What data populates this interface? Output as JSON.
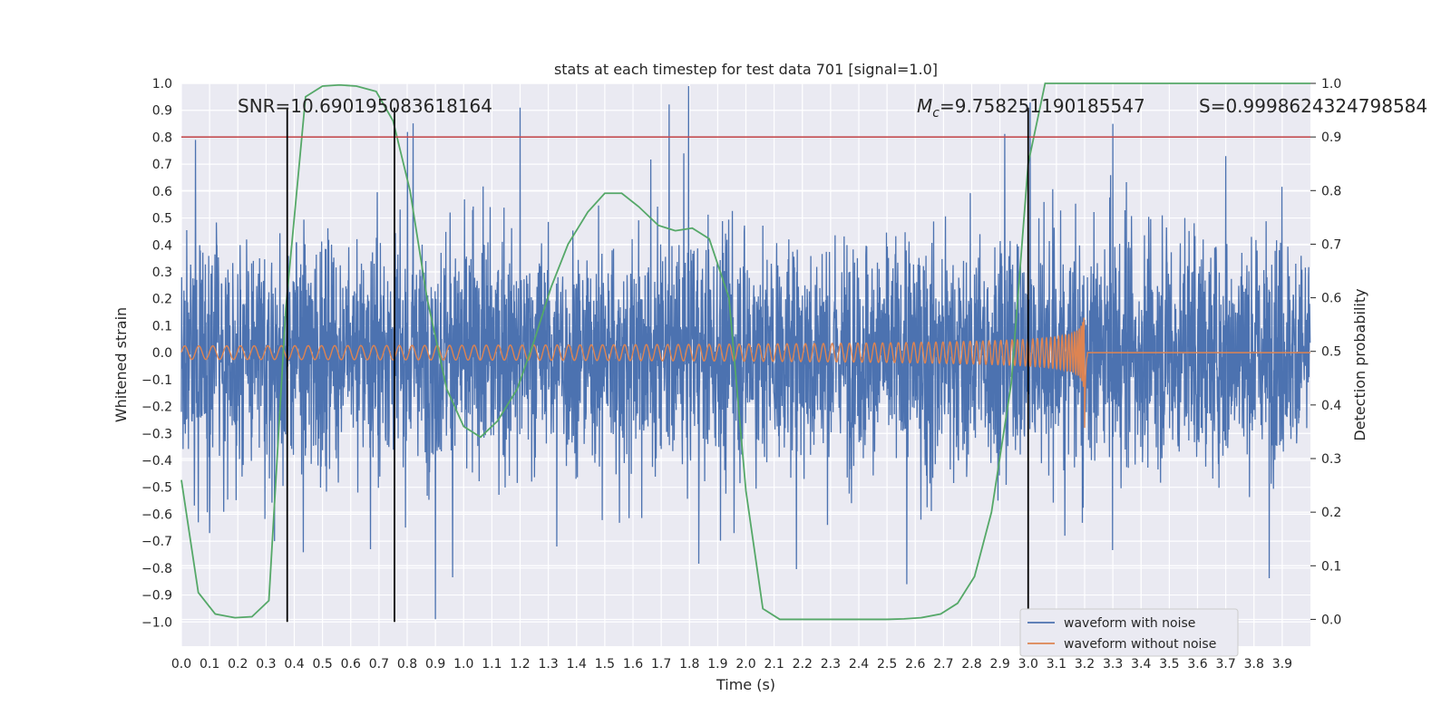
{
  "chart_data": {
    "type": "line",
    "title": "stats at each timestep for test data 701 [signal=1.0]",
    "xlabel": "Time (s)",
    "ylabel_left": "Whitened strain",
    "ylabel_right": "Detection probability",
    "xlim": [
      0.0,
      4.0
    ],
    "ylim_left": [
      -1.09,
      1.0
    ],
    "ylim_right": [
      -0.05,
      1.0
    ],
    "x_ticks": [
      "0.0",
      "0.1",
      "0.2",
      "0.3",
      "0.4",
      "0.5",
      "0.6",
      "0.7",
      "0.8",
      "0.9",
      "1.0",
      "1.1",
      "1.2",
      "1.3",
      "1.4",
      "1.5",
      "1.6",
      "1.7",
      "1.8",
      "1.9",
      "2.0",
      "2.1",
      "2.2",
      "2.3",
      "2.4",
      "2.5",
      "2.6",
      "2.7",
      "2.8",
      "2.9",
      "3.0",
      "3.1",
      "3.2",
      "3.3",
      "3.4",
      "3.5",
      "3.6",
      "3.7",
      "3.8",
      "3.9"
    ],
    "y_ticks_left": [
      "1.0",
      "0.9",
      "0.8",
      "0.7",
      "0.6",
      "0.5",
      "0.4",
      "0.3",
      "0.2",
      "0.1",
      "0.0",
      "−0.1",
      "−0.2",
      "−0.3",
      "−0.4",
      "−0.5",
      "−0.6",
      "−0.7",
      "−0.8",
      "−0.9",
      "−1.0"
    ],
    "y_ticks_right": [
      "1.0",
      "0.9",
      "0.8",
      "0.7",
      "0.6",
      "0.5",
      "0.4",
      "0.3",
      "0.2",
      "0.1",
      "0.0"
    ],
    "grid": true,
    "annotations": {
      "snr": "SNR=10.690195083618164",
      "mc_symbol": "M",
      "mc_sub": "c",
      "mc_value": "=9.758251190185547",
      "s": "S=0.9998624324798584"
    },
    "threshold_right": 0.9,
    "vertical_lines_x": [
      0.375,
      0.755,
      3.0
    ],
    "vertical_lines_range_left": [
      -1.0,
      0.91
    ],
    "series": [
      {
        "name": "waveform with noise",
        "color": "#4c72b0",
        "axis": "left",
        "kind": "noise",
        "typical_amplitude": 0.25,
        "spikes": [
          {
            "x": 0.05,
            "y": 0.79
          },
          {
            "x": 0.06,
            "y": -0.63
          },
          {
            "x": 0.1,
            "y": -0.67
          },
          {
            "x": 0.33,
            "y": -0.7
          },
          {
            "x": 0.67,
            "y": -0.73
          },
          {
            "x": 0.9,
            "y": -0.99
          },
          {
            "x": 1.2,
            "y": 0.91
          },
          {
            "x": 1.33,
            "y": -0.72
          },
          {
            "x": 1.78,
            "y": 0.74
          },
          {
            "x": 2.57,
            "y": -0.86
          },
          {
            "x": 3.0,
            "y": 0.73
          },
          {
            "x": 3.3,
            "y": 0.85
          },
          {
            "x": 3.7,
            "y": 0.73
          },
          {
            "x": 3.13,
            "y": -0.68
          }
        ]
      },
      {
        "name": "waveform without noise",
        "color": "#dd8452",
        "axis": "left",
        "kind": "chirp",
        "start_amplitude": 0.025,
        "peak_amplitude": 0.28,
        "start_frequency_hz": 20,
        "merger_time": 3.2
      },
      {
        "name": "detection probability",
        "color": "#55a868",
        "axis": "right",
        "x": [
          0.0,
          0.06,
          0.12,
          0.19,
          0.25,
          0.31,
          0.37,
          0.44,
          0.5,
          0.56,
          0.62,
          0.69,
          0.75,
          0.81,
          0.87,
          0.94,
          1.0,
          1.06,
          1.12,
          1.19,
          1.25,
          1.31,
          1.37,
          1.44,
          1.5,
          1.56,
          1.62,
          1.69,
          1.75,
          1.81,
          1.87,
          1.94,
          2.0,
          2.06,
          2.12,
          2.19,
          2.25,
          2.31,
          2.37,
          2.44,
          2.5,
          2.56,
          2.62,
          2.69,
          2.75,
          2.81,
          2.87,
          2.94,
          3.0,
          3.06,
          3.12,
          3.19,
          3.25,
          3.31,
          3.37,
          3.44,
          3.5,
          3.56,
          3.62,
          3.69,
          3.75,
          3.81,
          3.87,
          3.94,
          4.0
        ],
        "y": [
          0.26,
          0.05,
          0.01,
          0.003,
          0.005,
          0.035,
          0.58,
          0.975,
          0.995,
          0.997,
          0.995,
          0.985,
          0.93,
          0.8,
          0.6,
          0.43,
          0.36,
          0.34,
          0.37,
          0.43,
          0.52,
          0.62,
          0.7,
          0.76,
          0.795,
          0.795,
          0.77,
          0.735,
          0.725,
          0.73,
          0.71,
          0.6,
          0.24,
          0.02,
          0.0,
          0.0,
          0.0,
          0.0,
          0.0,
          0.0,
          0.0,
          0.001,
          0.003,
          0.01,
          0.03,
          0.08,
          0.2,
          0.44,
          0.85,
          1.0,
          1.0,
          1.0,
          1.0,
          1.0,
          1.0,
          1.0,
          1.0,
          1.0,
          1.0,
          1.0,
          1.0,
          1.0,
          1.0,
          1.0,
          1.0
        ]
      }
    ],
    "legend": {
      "placement": "lower-right",
      "entries": [
        "waveform with noise",
        "waveform without noise"
      ]
    },
    "colors": {
      "background": "#eaeaf2",
      "grid": "#ffffff",
      "threshold": "#c44e52",
      "vline": "#000000"
    }
  }
}
